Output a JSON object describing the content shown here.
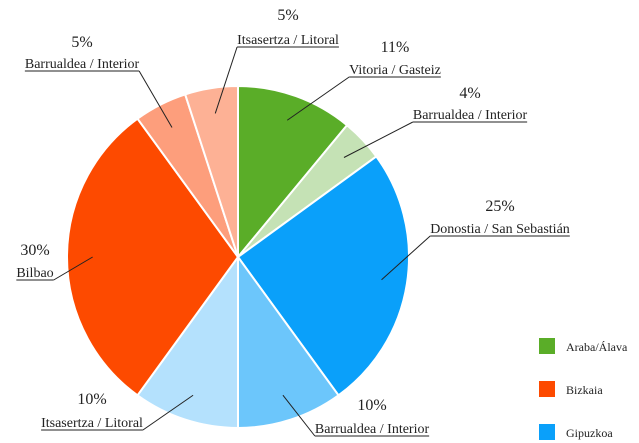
{
  "chart_data": {
    "type": "pie",
    "categories": [
      "Vitoria / Gasteiz",
      "Barrualdea / Interior",
      "Donostia / San Sebastián",
      "Barrualdea / Interior",
      "Itsasertza / Litoral",
      "Bilbao",
      "Barrualdea / Interior",
      "Itsasertza / Litoral"
    ],
    "values": [
      11,
      4,
      25,
      10,
      10,
      30,
      5,
      5
    ],
    "value_labels": [
      "11%",
      "4%",
      "25%",
      "10%",
      "10%",
      "30%",
      "5%",
      "5%"
    ],
    "colors": [
      "#5aad28",
      "#c5e2b5",
      "#0aa0fa",
      "#6cc6fb",
      "#b4e1fd",
      "#fd4a00",
      "#fd9e7c",
      "#fdb195"
    ],
    "legend": [
      {
        "name": "Araba/Álava",
        "color": "#5aad28"
      },
      {
        "name": "Bizkaia",
        "color": "#fd4a00"
      },
      {
        "name": "Gipuzkoa",
        "color": "#0aa0fa"
      }
    ]
  }
}
